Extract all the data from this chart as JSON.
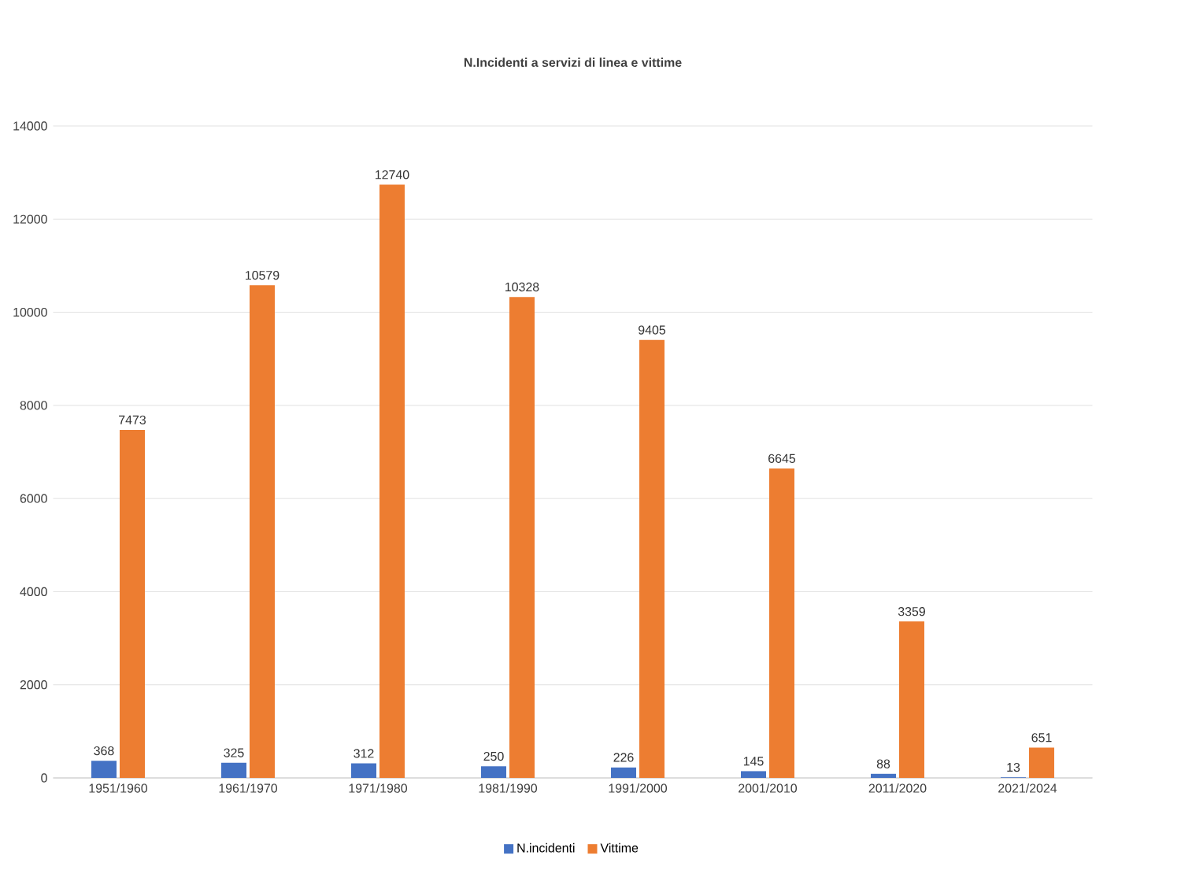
{
  "chart_data": {
    "type": "bar",
    "title": "N.Incidenti a servizi di linea e vittime",
    "categories": [
      "1951/1960",
      "1961/1970",
      "1971/1980",
      "1981/1990",
      "1991/2000",
      "2001/2010",
      "2011/2020",
      "2021/2024"
    ],
    "series": [
      {
        "name": "N.incidenti",
        "color": "#4472c4",
        "values": [
          368,
          325,
          312,
          250,
          226,
          145,
          88,
          13
        ]
      },
      {
        "name": "Vittime",
        "color": "#ed7d31",
        "values": [
          7473,
          10579,
          12740,
          10328,
          9405,
          6645,
          3359,
          651
        ]
      }
    ],
    "ylim": [
      0,
      14000
    ],
    "yticks": [
      0,
      2000,
      4000,
      6000,
      8000,
      10000,
      12000,
      14000
    ],
    "grid": "y",
    "legend": "bottom",
    "data_labels": true
  }
}
